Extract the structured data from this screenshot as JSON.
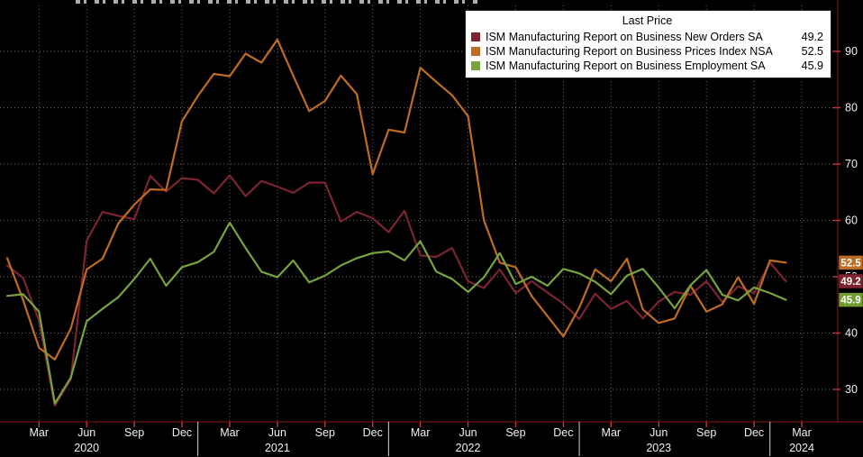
{
  "window": {
    "background": "#000000"
  },
  "legend": {
    "title": "Last Price",
    "entries": [
      {
        "label": "ISM Manufacturing Report on Business New Orders SA",
        "value": "49.2",
        "color": "#7d2332"
      },
      {
        "label": "ISM Manufacturing Report on Business Prices Index NSA",
        "value": "52.5",
        "color": "#bf6c22"
      },
      {
        "label": "ISM Manufacturing Report on Business Employment SA",
        "value": "45.9",
        "color": "#78a33c"
      }
    ]
  },
  "y_axis": {
    "ticks": [
      90,
      80,
      70,
      60,
      50,
      40,
      30
    ]
  },
  "x_axis": {
    "ticks": [
      {
        "m": 2,
        "label": "Mar"
      },
      {
        "m": 5,
        "label": "Jun"
      },
      {
        "m": 8,
        "label": "Sep"
      },
      {
        "m": 11,
        "label": "Dec"
      },
      {
        "m": 14,
        "label": "Mar"
      },
      {
        "m": 17,
        "label": "Jun"
      },
      {
        "m": 20,
        "label": "Sep"
      },
      {
        "m": 23,
        "label": "Dec"
      },
      {
        "m": 26,
        "label": "Mar"
      },
      {
        "m": 29,
        "label": "Jun"
      },
      {
        "m": 32,
        "label": "Sep"
      },
      {
        "m": 35,
        "label": "Dec"
      },
      {
        "m": 38,
        "label": "Mar"
      },
      {
        "m": 41,
        "label": "Jun"
      },
      {
        "m": 44,
        "label": "Sep"
      },
      {
        "m": 47,
        "label": "Dec"
      },
      {
        "m": 50,
        "label": "Mar"
      }
    ],
    "years": [
      {
        "m": 5,
        "label": "2020"
      },
      {
        "m": 17,
        "label": "2021"
      },
      {
        "m": 29,
        "label": "2022"
      },
      {
        "m": 41,
        "label": "2023"
      },
      {
        "m": 50,
        "label": "2024"
      }
    ],
    "separators_m": [
      12,
      24,
      36,
      48
    ]
  },
  "last_price_markers": [
    {
      "value": "52.5",
      "color": "#bf6c22"
    },
    {
      "value": "49.2",
      "color": "#7d2332"
    },
    {
      "value": "45.9",
      "color": "#6f9e2e"
    }
  ],
  "chart_data": {
    "type": "line",
    "title": "",
    "x_unit": "month",
    "x_start": "2020-01",
    "x_end": "2024-02",
    "ylim": [
      24,
      97
    ],
    "y_ticks": [
      30,
      40,
      50,
      60,
      70,
      80,
      90
    ],
    "grid": "dotted",
    "legend_position": "top-right",
    "series": [
      {
        "name": "ISM Manufacturing Report on Business New Orders SA",
        "color": "#7d2332",
        "last": 49.2,
        "values": [
          52.0,
          49.8,
          42.2,
          27.1,
          31.8,
          56.4,
          61.5,
          60.8,
          60.2,
          67.9,
          65.1,
          67.5,
          67.2,
          64.8,
          68.0,
          64.3,
          67.0,
          66.0,
          64.9,
          66.7,
          66.7,
          59.8,
          61.5,
          60.4,
          57.9,
          61.7,
          53.8,
          53.5,
          55.1,
          49.2,
          48.0,
          51.3,
          47.1,
          49.2,
          47.2,
          45.2,
          42.5,
          47.0,
          44.3,
          45.7,
          42.6,
          45.6,
          47.3,
          46.8,
          49.2,
          45.5,
          48.3,
          47.1,
          52.5,
          49.2
        ]
      },
      {
        "name": "ISM Manufacturing Report on Business Prices Index NSA",
        "color": "#bf6c22",
        "last": 52.5,
        "values": [
          53.3,
          45.9,
          37.4,
          35.3,
          40.8,
          51.3,
          53.2,
          59.5,
          62.8,
          65.5,
          65.4,
          77.6,
          82.1,
          86.0,
          85.6,
          89.6,
          88.0,
          92.1,
          85.7,
          79.4,
          81.2,
          85.7,
          82.4,
          68.2,
          76.1,
          75.6,
          87.1,
          84.6,
          82.2,
          78.5,
          60.0,
          52.5,
          51.7,
          46.6,
          43.0,
          39.4,
          44.5,
          51.3,
          49.2,
          53.2,
          44.2,
          41.8,
          42.6,
          48.4,
          43.8,
          45.1,
          49.9,
          45.2,
          52.9,
          52.5
        ]
      },
      {
        "name": "ISM Manufacturing Report on Business Employment SA",
        "color": "#78a33c",
        "last": 45.9,
        "values": [
          46.6,
          46.9,
          43.8,
          27.5,
          32.1,
          42.1,
          44.3,
          46.4,
          49.6,
          53.2,
          48.4,
          51.7,
          52.6,
          54.4,
          59.6,
          55.1,
          50.9,
          49.9,
          52.9,
          49.0,
          50.2,
          52.0,
          53.3,
          54.2,
          54.5,
          52.9,
          56.3,
          50.9,
          49.6,
          47.3,
          49.9,
          54.2,
          48.7,
          50.0,
          48.4,
          51.4,
          50.6,
          49.1,
          46.9,
          50.2,
          51.4,
          48.1,
          44.4,
          48.5,
          51.2,
          46.8,
          45.8,
          48.1,
          47.1,
          45.9
        ]
      }
    ]
  }
}
